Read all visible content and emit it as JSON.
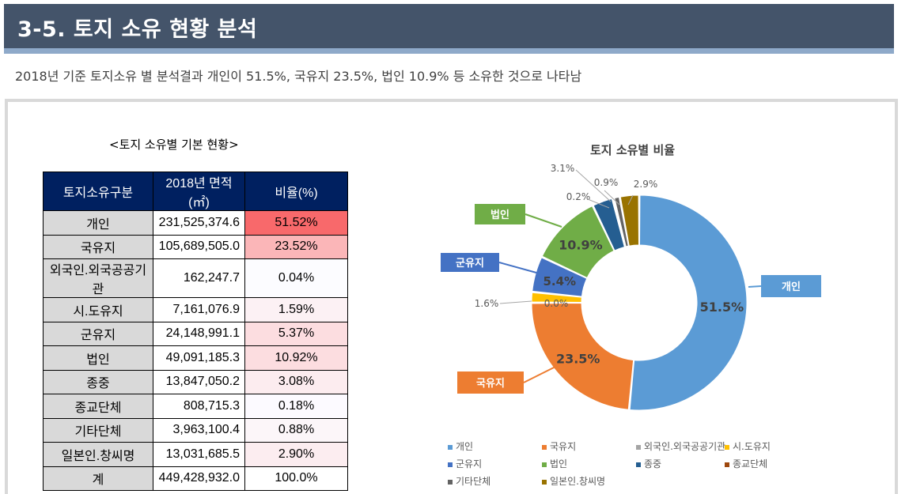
{
  "header": {
    "title": "3-5. 토지 소유 현황 분석",
    "subtitle": "2018년 기준 토지소유 별 분석결과 개인이 51.5%, 국유지 23.5%, 법인 10.9% 등 소유한 것으로 나타남"
  },
  "table": {
    "title": "<토지 소유별 기본 현황>",
    "headers": [
      "토지소유구분",
      "2018년 면적(㎡)",
      "비율(%)"
    ],
    "rows": [
      {
        "category": "개인",
        "area": "231,525,374.6",
        "ratio": "51.52%",
        "color": "#f8696b"
      },
      {
        "category": "국유지",
        "area": "105,689,505.0",
        "ratio": "23.52%",
        "color": "#fbb6b8"
      },
      {
        "category": "외국인.외국공공기관",
        "area": "162,247.7",
        "ratio": "0.04%",
        "color": "#fcfcff"
      },
      {
        "category": "시.도유지",
        "area": "7,161,076.9",
        "ratio": "1.59%",
        "color": "#fcf1f4"
      },
      {
        "category": "군유지",
        "area": "24,148,991.1",
        "ratio": "5.37%",
        "color": "#fcdde0"
      },
      {
        "category": "법인",
        "area": "49,091,185.3",
        "ratio": "10.92%",
        "color": "#fcdde0"
      },
      {
        "category": "종중",
        "area": "13,847,050.2",
        "ratio": "3.08%",
        "color": "#fcecef"
      },
      {
        "category": "종교단체",
        "area": "808,715.3",
        "ratio": "0.18%",
        "color": "#fcfaff"
      },
      {
        "category": "기타단체",
        "area": "3,963,100.4",
        "ratio": "0.88%",
        "color": "#fcf6f9"
      },
      {
        "category": "일본인.창씨명",
        "area": "13,031,685.5",
        "ratio": "2.90%",
        "color": "#fcedf0"
      },
      {
        "category": "계",
        "area": "449,428,932.0",
        "ratio": "100.0%",
        "color": "#ffffff"
      }
    ]
  },
  "chart_data": {
    "type": "pie",
    "title": "토지 소유별  비율",
    "donut": true,
    "categories": [
      "개인",
      "국유지",
      "외국인.외국공공기관",
      "시.도유지",
      "군유지",
      "법인",
      "종중",
      "종교단체",
      "기타단체",
      "일본인.창씨명"
    ],
    "values": [
      51.5,
      23.5,
      0.0,
      1.6,
      5.4,
      10.9,
      3.1,
      0.2,
      0.9,
      2.9
    ],
    "data_labels": [
      "51.5%",
      "23.5%",
      "0.0%",
      "1.6%",
      "5.4%",
      "10.9%",
      "3.1%",
      "0.2%",
      "0.9%",
      "2.9%"
    ],
    "colors": [
      "#5b9bd5",
      "#ed7d31",
      "#a5a5a5",
      "#ffc000",
      "#4472c4",
      "#70ad47",
      "#255e91",
      "#9e480e",
      "#636363",
      "#997300"
    ],
    "callouts": {
      "개인": "개인",
      "국유지": "국유지",
      "군유지": "군유지",
      "법인": "법인"
    },
    "legend": [
      "개인",
      "국유지",
      "외국인.외국공공기관",
      "시.도유지",
      "군유지",
      "법인",
      "종중",
      "종교단체",
      "기타단체",
      "일본인.창씨명"
    ],
    "legend_position": "bottom"
  }
}
